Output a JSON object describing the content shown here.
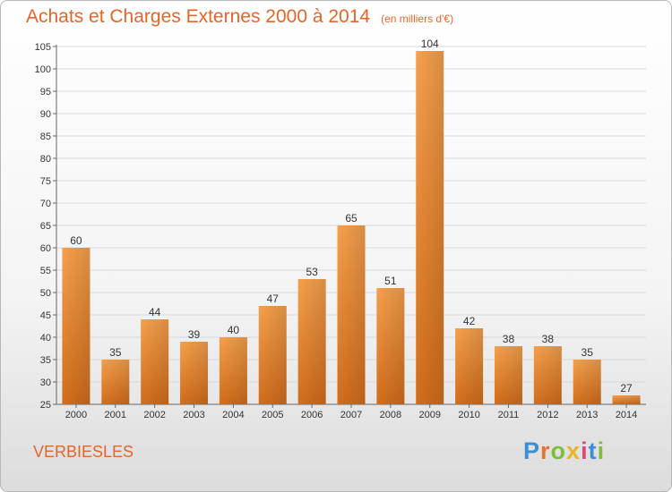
{
  "chart_data": {
    "type": "bar",
    "title": "Achats et Charges Externes 2000 à 2014",
    "subtitle": "(en milliers d'€)",
    "categories": [
      "2000",
      "2001",
      "2002",
      "2003",
      "2004",
      "2005",
      "2006",
      "2007",
      "2008",
      "2009",
      "2010",
      "2011",
      "2012",
      "2013",
      "2014"
    ],
    "values": [
      60,
      35,
      44,
      39,
      40,
      47,
      53,
      65,
      51,
      104,
      42,
      38,
      38,
      35,
      27
    ],
    "ylim": [
      25,
      105
    ],
    "yticks": [
      25,
      30,
      35,
      40,
      45,
      50,
      55,
      60,
      65,
      70,
      75,
      80,
      85,
      90,
      95,
      100,
      105
    ],
    "xlabel": "",
    "ylabel": "",
    "grid": true,
    "bar_color": "#f0923a",
    "bar_color_dark": "#d9711f"
  },
  "footer": {
    "commune": "VERBIESLES",
    "logo_letters": [
      {
        "char": "P",
        "color": "#3a8fd6"
      },
      {
        "char": "r",
        "color": "#e8732a"
      },
      {
        "char": "o",
        "color": "#7bbf3c"
      },
      {
        "char": "x",
        "color": "#e8b52a"
      },
      {
        "char": "i",
        "color": "#d94a7a"
      },
      {
        "char": "t",
        "color": "#3a8fd6"
      },
      {
        "char": "i",
        "color": "#7bbf3c"
      }
    ]
  }
}
